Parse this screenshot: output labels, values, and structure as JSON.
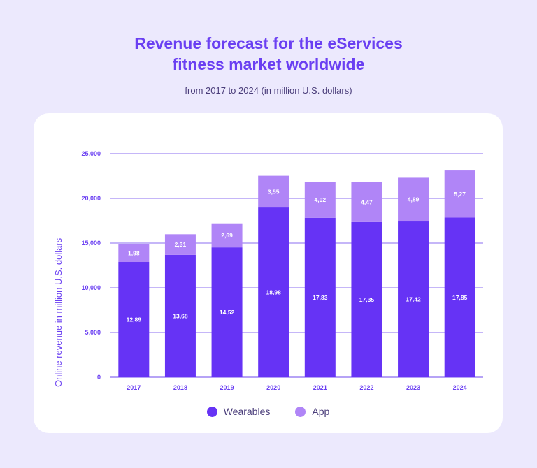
{
  "title_line1": "Revenue forecast for the eServices",
  "title_line2": "fitness market worldwide",
  "subtitle": "from 2017 to 2024 (in million U.S. dollars)",
  "colors": {
    "wearables": "#6633f5",
    "app": "#b085f7",
    "grid": "#8b6cf0",
    "text": "#4a3d7a",
    "accent": "#6a3ff2"
  },
  "chart_data": {
    "type": "bar",
    "stacked": true,
    "title": "Revenue forecast for the eServices fitness market worldwide",
    "subtitle": "from 2017 to 2024 (in million U.S. dollars)",
    "xlabel": "",
    "ylabel": "Online revenue in million U.S. dollars",
    "ylim": [
      0,
      25000
    ],
    "yticks": [
      0,
      5000,
      10000,
      15000,
      20000,
      25000
    ],
    "ytick_labels": [
      "0",
      "5,000",
      "10,000",
      "15,000",
      "20,000",
      "25,000"
    ],
    "categories": [
      "2017",
      "2018",
      "2019",
      "2020",
      "2021",
      "2022",
      "2023",
      "2024"
    ],
    "series": [
      {
        "name": "Wearables",
        "values": [
          12890,
          13680,
          14520,
          18980,
          17830,
          17350,
          17420,
          17850
        ],
        "labels": [
          "12,89",
          "13,68",
          "14,52",
          "18,98",
          "17,83",
          "17,35",
          "17,42",
          "17,85"
        ]
      },
      {
        "name": "App",
        "values": [
          1980,
          2310,
          2690,
          3550,
          4020,
          4470,
          4890,
          5270
        ],
        "labels": [
          "1,98",
          "2,31",
          "2,69",
          "3,55",
          "4,02",
          "4,47",
          "4,89",
          "5,27"
        ]
      }
    ],
    "legend": [
      "Wearables",
      "App"
    ],
    "legend_position": "bottom",
    "grid": true
  }
}
